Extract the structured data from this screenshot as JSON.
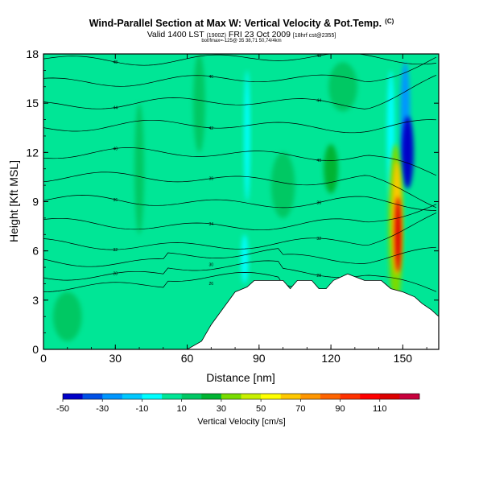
{
  "title": "Wind-Parallel Section at Max W: Vertical Velocity & Pot.Temp.",
  "copyright": "(C)",
  "valid_line": "Valid 1400 LST",
  "valid_small": "(1900Z)",
  "valid_date": "FRI 23 Oct 2009",
  "valid_suffix": "[18hrf cst@2355]",
  "subline": "bot/fmax=-125@ 35 38,71 50,74/4km",
  "chart_data": {
    "type": "heatmap",
    "xlabel": "Distance [nm]",
    "ylabel": "Height [Kft MSL]",
    "xlim": [
      0,
      165
    ],
    "ylim": [
      0,
      18
    ],
    "x_ticks": [
      0,
      30,
      60,
      90,
      120,
      150
    ],
    "y_ticks": [
      0,
      3,
      6,
      9,
      12,
      15,
      18
    ],
    "colorbar": {
      "label": "Vertical Velocity [cm/s]",
      "tick_labels": [
        "-50",
        "-30",
        "-10",
        "10",
        "30",
        "50",
        "70",
        "90",
        "110"
      ],
      "tick_values": [
        -50,
        -30,
        -10,
        10,
        30,
        50,
        70,
        90,
        110
      ],
      "bins": [
        {
          "from": -50,
          "to": -40,
          "color": "#0000c8"
        },
        {
          "from": -40,
          "to": -30,
          "color": "#0050e6"
        },
        {
          "from": -30,
          "to": -20,
          "color": "#0096ff"
        },
        {
          "from": -20,
          "to": -10,
          "color": "#00c8ff"
        },
        {
          "from": -10,
          "to": 0,
          "color": "#00ffff"
        },
        {
          "from": 0,
          "to": 10,
          "color": "#00e696"
        },
        {
          "from": 10,
          "to": 20,
          "color": "#00c864"
        },
        {
          "from": 20,
          "to": 30,
          "color": "#00b432"
        },
        {
          "from": 30,
          "to": 40,
          "color": "#78dc00"
        },
        {
          "from": 40,
          "to": 50,
          "color": "#c8f000"
        },
        {
          "from": 50,
          "to": 60,
          "color": "#ffff00"
        },
        {
          "from": 60,
          "to": 70,
          "color": "#ffc800"
        },
        {
          "from": 70,
          "to": 80,
          "color": "#ff9600"
        },
        {
          "from": 80,
          "to": 90,
          "color": "#ff6400"
        },
        {
          "from": 90,
          "to": 100,
          "color": "#ff3200"
        },
        {
          "from": 100,
          "to": 110,
          "color": "#ff0000"
        },
        {
          "from": 110,
          "to": 120,
          "color": "#dc0000"
        },
        {
          "from": 120,
          "to": 130,
          "color": "#c8003c"
        }
      ]
    },
    "background_color": "#00e696",
    "terrain": [
      [
        0,
        0
      ],
      [
        30,
        0
      ],
      [
        60,
        0
      ],
      [
        66,
        0.5
      ],
      [
        70,
        1.5
      ],
      [
        75,
        2.5
      ],
      [
        80,
        3.5
      ],
      [
        85,
        3.8
      ],
      [
        88,
        4.2
      ],
      [
        100,
        4.2
      ],
      [
        103,
        3.7
      ],
      [
        106,
        4.2
      ],
      [
        112,
        4.2
      ],
      [
        115,
        3.7
      ],
      [
        118,
        3.7
      ],
      [
        121,
        4.2
      ],
      [
        127,
        4.6
      ],
      [
        134,
        4.2
      ],
      [
        141,
        4.2
      ],
      [
        145,
        3.7
      ],
      [
        150,
        3.5
      ],
      [
        155,
        3.2
      ],
      [
        158,
        2.8
      ],
      [
        162,
        2.4
      ],
      [
        165,
        2.0
      ]
    ],
    "w_features": [
      {
        "x": 152,
        "y": 12.0,
        "rx": 2.5,
        "ry": 2.2,
        "w": -45
      },
      {
        "x": 151,
        "y": 14.5,
        "rx": 2.0,
        "ry": 3.0,
        "w": -30
      },
      {
        "x": 148,
        "y": 7.0,
        "rx": 1.4,
        "ry": 2.3,
        "w": 110
      },
      {
        "x": 147.5,
        "y": 8.0,
        "rx": 2.0,
        "ry": 3.5,
        "w": 60
      },
      {
        "x": 147,
        "y": 7.5,
        "rx": 3.0,
        "ry": 5.0,
        "w": 35
      },
      {
        "x": 145,
        "y": 13.0,
        "rx": 1.6,
        "ry": 4.0,
        "w": -8
      },
      {
        "x": 84,
        "y": 5.5,
        "rx": 1.5,
        "ry": 1.5,
        "w": -8
      },
      {
        "x": 85,
        "y": 13.0,
        "rx": 1.2,
        "ry": 4.0,
        "w": -8
      },
      {
        "x": 120,
        "y": 11.0,
        "rx": 3.0,
        "ry": 1.5,
        "w": 20
      },
      {
        "x": 100,
        "y": 10.0,
        "rx": 5.0,
        "ry": 2.0,
        "w": 18
      },
      {
        "x": 40,
        "y": 11.0,
        "rx": 2.0,
        "ry": 4.0,
        "w": 15
      },
      {
        "x": 10,
        "y": 2.0,
        "rx": 6.0,
        "ry": 1.5,
        "w": 15
      },
      {
        "x": 65,
        "y": 15.0,
        "rx": 2.5,
        "ry": 3.0,
        "w": 15
      },
      {
        "x": 125,
        "y": 16.0,
        "rx": 6.0,
        "ry": 1.5,
        "w": 15
      }
    ],
    "theta_contours": [
      {
        "y": 17.7,
        "label": "48"
      },
      {
        "y": 16.4,
        "label": "46"
      },
      {
        "y": 15.0,
        "label": "44"
      },
      {
        "y": 13.6,
        "label": "42"
      },
      {
        "y": 11.9,
        "label": "40"
      },
      {
        "y": 10.4,
        "label": "38"
      },
      {
        "y": 9.0,
        "label": "36"
      },
      {
        "y": 7.6,
        "label": "34"
      },
      {
        "y": 6.4,
        "label": "32"
      },
      {
        "y": 5.4,
        "label": "30"
      },
      {
        "y": 4.6,
        "label": "28"
      },
      {
        "y": 3.9,
        "label": "26"
      }
    ]
  }
}
